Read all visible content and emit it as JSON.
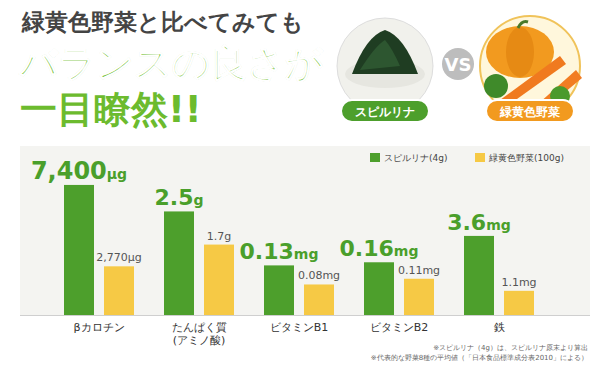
{
  "header": {
    "line1": "緑黄色野菜と比べてみても",
    "line2": "バランスの良さが",
    "line3": "一目瞭然!!",
    "vs": "VS",
    "left_label": "スピルリナ",
    "right_label": "緑黄色野菜"
  },
  "chart_data": [
    {
      "type": "bar",
      "categories": [
        "βカロチン"
      ],
      "legend": "top-right",
      "data_labels": true,
      "tick_labels": "x",
      "ylim": [
        0,
        8250
      ],
      "series": [
        {
          "name": "スピルリナ(4g)",
          "color": "#4d9f2c",
          "values": [
            7400
          ],
          "value_labels": [
            "7,400μg"
          ]
        },
        {
          "name": "緑黄色野菜(100g)",
          "color": "#f6c945",
          "values": [
            2770
          ],
          "value_labels": [
            "2,770μg"
          ]
        }
      ]
    },
    {
      "type": "bar",
      "categories": [
        "たんぱく質\n(アミノ酸)"
      ],
      "data_labels": true,
      "tick_labels": "x",
      "ylim": [
        0,
        3.5
      ],
      "series": [
        {
          "color": "#4d9f2c",
          "values": [
            2.5
          ],
          "value_labels": [
            "2.5g"
          ]
        },
        {
          "color": "#f6c945",
          "values": [
            1.7
          ],
          "value_labels": [
            "1.7g"
          ]
        }
      ]
    },
    {
      "type": "bar",
      "categories": [
        "ビタミンB1"
      ],
      "data_labels": true,
      "tick_labels": "x",
      "ylim": [
        0,
        0.38
      ],
      "series": [
        {
          "color": "#4d9f2c",
          "values": [
            0.13
          ],
          "value_labels": [
            "0.13mg"
          ]
        },
        {
          "color": "#f6c945",
          "values": [
            0.08
          ],
          "value_labels": [
            "0.08mg"
          ]
        }
      ]
    },
    {
      "type": "bar",
      "categories": [
        "ビタミンB2"
      ],
      "data_labels": true,
      "tick_labels": "x",
      "ylim": [
        0,
        0.44
      ],
      "series": [
        {
          "color": "#4d9f2c",
          "values": [
            0.16
          ],
          "value_labels": [
            "0.16mg"
          ]
        },
        {
          "color": "#f6c945",
          "values": [
            0.11
          ],
          "value_labels": [
            "0.11mg"
          ]
        }
      ]
    },
    {
      "type": "bar",
      "categories": [
        "鉄"
      ],
      "data_labels": true,
      "tick_labels": "x",
      "ylim": [
        0,
        6.6
      ],
      "series": [
        {
          "color": "#4d9f2c",
          "values": [
            3.6
          ],
          "value_labels": [
            "3.6mg"
          ]
        },
        {
          "color": "#f6c945",
          "values": [
            1.1
          ],
          "value_labels": [
            "1.1mg"
          ]
        }
      ]
    }
  ],
  "notes": [
    "※スピルリナ（4g）は、スピルリナ原末より算出",
    "※代表的な野菜8種の平均値（「日本食品標準成分表2010」による）"
  ]
}
